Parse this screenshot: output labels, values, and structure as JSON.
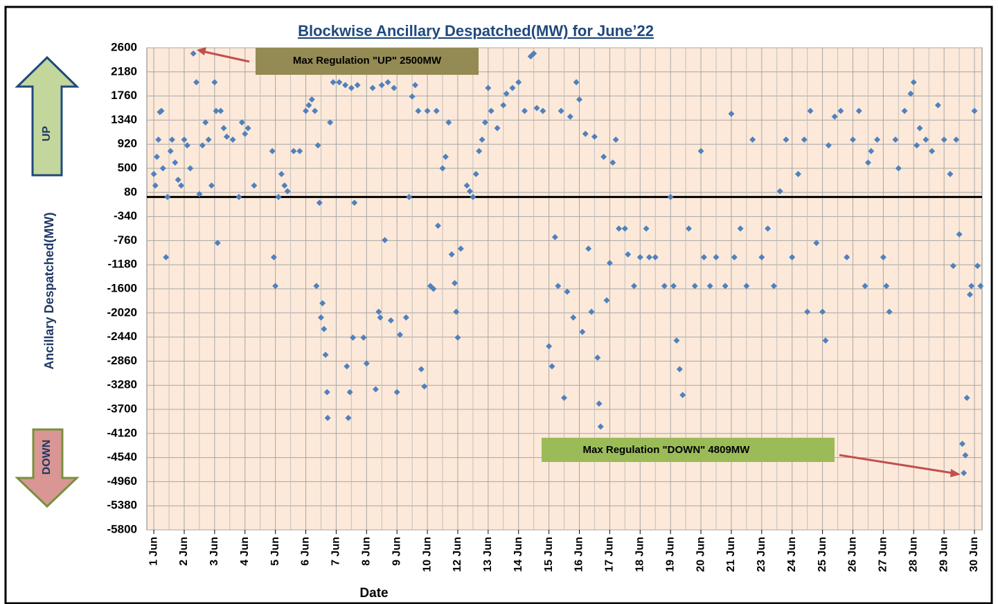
{
  "chart_data": {
    "type": "scatter",
    "title": "Blockwise Ancillary Despatched(MW) for  June’22",
    "y_label": "Ancillary Despatched(MW)",
    "x_label": "Date",
    "side_labels": [
      "UP",
      "DOWN"
    ],
    "annotations": [
      {
        "text": "Max Regulation \"UP\" 2500MW"
      },
      {
        "text": "Max Regulation \"DOWN\" 4809MW"
      }
    ],
    "reference_line": 0,
    "color": "#4f81bd",
    "grid": true,
    "ylim": [
      -5800,
      2600
    ],
    "yticks": [
      2600,
      2180,
      1760,
      1340,
      920,
      500,
      80,
      -340,
      -760,
      -1180,
      -1600,
      -2020,
      -2440,
      -2860,
      -3280,
      -3700,
      -4120,
      -4540,
      -4960,
      -5380,
      -5800
    ],
    "xlim": [
      -0.23,
      27.25
    ],
    "xticks": [
      {
        "value": 0,
        "label": "1 Jun"
      },
      {
        "value": 1,
        "label": "2 Jun"
      },
      {
        "value": 2,
        "label": "3 Jun"
      },
      {
        "value": 3,
        "label": "4 Jun"
      },
      {
        "value": 4,
        "label": "5 Jun"
      },
      {
        "value": 5,
        "label": "6 Jun"
      },
      {
        "value": 6,
        "label": "7 Jun"
      },
      {
        "value": 7,
        "label": "8 Jun"
      },
      {
        "value": 8,
        "label": "9 Jun"
      },
      {
        "value": 9,
        "label": "10 Jun"
      },
      {
        "value": 10,
        "label": "12 Jun"
      },
      {
        "value": 11,
        "label": "13 Jun"
      },
      {
        "value": 12,
        "label": "14 Jun"
      },
      {
        "value": 13,
        "label": "15 Jun"
      },
      {
        "value": 14,
        "label": "16 Jun"
      },
      {
        "value": 15,
        "label": "17 Jun"
      },
      {
        "value": 16,
        "label": "18 Jun"
      },
      {
        "value": 17,
        "label": "19 Jun"
      },
      {
        "value": 18,
        "label": "20 Jun"
      },
      {
        "value": 19,
        "label": "21 Jun"
      },
      {
        "value": 20,
        "label": "23 Jun"
      },
      {
        "value": 21,
        "label": "24 Jun"
      },
      {
        "value": 22,
        "label": "25 Jun"
      },
      {
        "value": 23,
        "label": "26 Jun"
      },
      {
        "value": 24,
        "label": "27 Jun"
      },
      {
        "value": 25,
        "label": "28 Jun"
      },
      {
        "value": 26,
        "label": "29 Jun"
      },
      {
        "value": 27,
        "label": "30 Jun"
      }
    ],
    "x": [
      0.0,
      0.05,
      0.1,
      0.15,
      0.2,
      0.25,
      0.3,
      0.4,
      0.45,
      0.55,
      0.6,
      0.7,
      0.8,
      0.9,
      1.0,
      1.1,
      1.2,
      1.3,
      1.4,
      1.5,
      1.6,
      1.7,
      1.8,
      1.9,
      2.0,
      2.05,
      2.1,
      2.2,
      2.3,
      2.4,
      2.6,
      2.8,
      2.9,
      3.0,
      3.1,
      3.3,
      3.9,
      3.95,
      4.0,
      4.1,
      4.2,
      4.3,
      4.4,
      4.6,
      4.8,
      5.0,
      5.1,
      5.2,
      5.3,
      5.35,
      5.4,
      5.45,
      5.5,
      5.55,
      5.6,
      5.65,
      5.7,
      5.72,
      5.8,
      5.9,
      6.1,
      6.3,
      6.35,
      6.4,
      6.45,
      6.5,
      6.55,
      6.6,
      6.7,
      6.9,
      7.0,
      7.2,
      7.3,
      7.4,
      7.45,
      7.5,
      7.6,
      7.7,
      7.8,
      7.9,
      8.0,
      8.1,
      8.3,
      8.4,
      8.5,
      8.6,
      8.7,
      8.8,
      8.9,
      9.0,
      9.1,
      9.2,
      9.3,
      9.35,
      9.5,
      9.6,
      9.7,
      9.8,
      9.9,
      9.95,
      10.0,
      10.1,
      10.3,
      10.4,
      10.5,
      10.6,
      10.7,
      10.8,
      10.9,
      11.0,
      11.1,
      11.3,
      11.5,
      11.6,
      11.8,
      12.0,
      12.2,
      12.4,
      12.5,
      12.6,
      12.8,
      13.0,
      13.1,
      13.2,
      13.3,
      13.4,
      13.5,
      13.6,
      13.7,
      13.8,
      13.9,
      14.0,
      14.1,
      14.2,
      14.3,
      14.4,
      14.5,
      14.6,
      14.65,
      14.7,
      14.8,
      14.9,
      15.0,
      15.1,
      15.2,
      15.3,
      15.5,
      15.6,
      15.8,
      16.0,
      16.2,
      16.3,
      16.5,
      16.8,
      17.0,
      17.1,
      17.2,
      17.3,
      17.4,
      17.6,
      17.8,
      18.0,
      18.1,
      18.3,
      18.5,
      18.8,
      19.0,
      19.1,
      19.3,
      19.5,
      19.7,
      20.0,
      20.2,
      20.4,
      20.6,
      20.8,
      21.0,
      21.2,
      21.4,
      21.5,
      21.6,
      21.8,
      22.0,
      22.1,
      22.2,
      22.4,
      22.6,
      22.8,
      23.0,
      23.2,
      23.4,
      23.5,
      23.6,
      23.8,
      24.0,
      24.1,
      24.2,
      24.4,
      24.5,
      24.7,
      24.9,
      25.0,
      25.1,
      25.2,
      25.4,
      25.6,
      25.8,
      26.0,
      26.2,
      26.3,
      26.4,
      26.5,
      26.6,
      26.65,
      26.7,
      26.75,
      26.85,
      26.9,
      27.0,
      27.1,
      27.2
    ],
    "y": [
      400,
      200,
      700,
      1000,
      1480,
      1500,
      500,
      -1050,
      0,
      800,
      1000,
      600,
      300,
      200,
      1000,
      900,
      500,
      2500,
      2000,
      50,
      900,
      1300,
      1000,
      200,
      2000,
      1500,
      -800,
      1500,
      1200,
      1050,
      1000,
      0,
      1300,
      1100,
      1200,
      200,
      800,
      -1050,
      -1550,
      0,
      400,
      200,
      100,
      800,
      800,
      1500,
      1600,
      1700,
      1500,
      -1550,
      900,
      -100,
      -2100,
      -1850,
      -2300,
      -2750,
      -3400,
      -3850,
      1300,
      2000,
      2000,
      1950,
      -2950,
      -3850,
      -3400,
      1900,
      -2450,
      -100,
      1950,
      -2450,
      -2900,
      1900,
      -3350,
      -2000,
      -2100,
      1950,
      -750,
      2000,
      -2150,
      1900,
      -3400,
      -2400,
      -2100,
      0,
      1750,
      1950,
      1500,
      -3000,
      -3300,
      1500,
      -1550,
      -1600,
      1500,
      -500,
      500,
      700,
      1300,
      -1000,
      -1500,
      -2000,
      -2450,
      -900,
      200,
      100,
      0,
      400,
      800,
      1000,
      1300,
      1900,
      1500,
      1200,
      1600,
      1800,
      1900,
      2000,
      1500,
      2450,
      2500,
      1550,
      1500,
      -2600,
      -2950,
      -700,
      -1550,
      1500,
      -3500,
      -1650,
      1400,
      -2100,
      2000,
      1700,
      -2350,
      1100,
      -900,
      -2000,
      1050,
      -2800,
      -3600,
      -4000,
      700,
      -1800,
      -1150,
      600,
      1000,
      -550,
      -550,
      -1000,
      -1550,
      -1050,
      -550,
      -1050,
      -1050,
      -1550,
      0,
      -1550,
      -2500,
      -3000,
      -3450,
      -550,
      -1550,
      800,
      -1050,
      -1550,
      -1050,
      -1550,
      1450,
      -1050,
      -550,
      -1550,
      1000,
      -1050,
      -550,
      -1550,
      100,
      1000,
      -1050,
      400,
      1000,
      -2000,
      1500,
      -800,
      -2000,
      -2500,
      900,
      1400,
      1500,
      -1050,
      1000,
      1500,
      -1550,
      600,
      800,
      1000,
      -1050,
      -1550,
      -2000,
      1000,
      500,
      1500,
      1800,
      2000,
      900,
      1200,
      1000,
      800,
      1600,
      1000,
      400,
      -1200,
      1000,
      -650,
      -4300,
      -4809,
      -4500,
      -3500,
      -1700,
      -1550,
      1500,
      -1200,
      -1550
    ]
  }
}
